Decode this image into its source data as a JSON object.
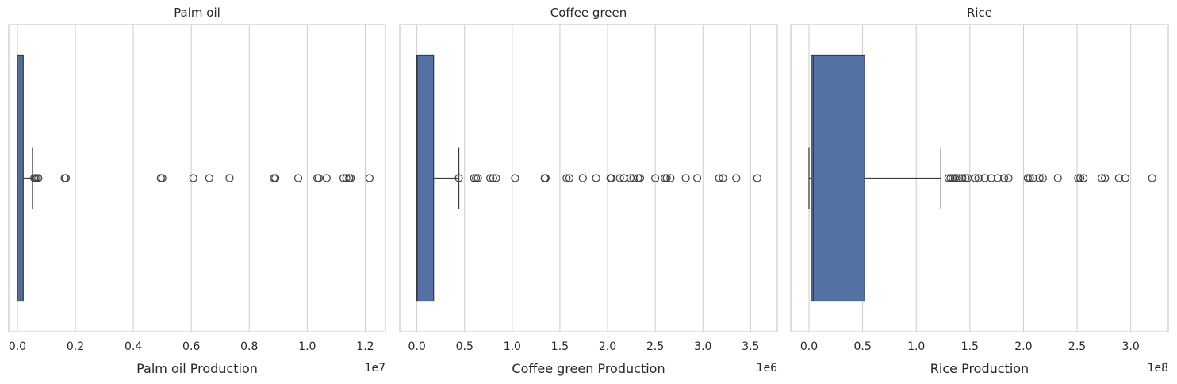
{
  "chart_data": [
    {
      "type": "boxplot",
      "title": "Palm oil",
      "xlabel": "Palm oil  Production",
      "ylabel": "",
      "offset_label": "1e7",
      "xlim": [
        -0.03,
        1.27
      ],
      "xticks": [
        0.0,
        0.2,
        0.4,
        0.6,
        0.8,
        1.0,
        1.2
      ],
      "xtick_labels": [
        "0.0",
        "0.2",
        "0.4",
        "0.6",
        "0.8",
        "1.0",
        "1.2"
      ],
      "grid": true,
      "box": {
        "whisker_low": 0.0,
        "q1": 0.0,
        "median": 0.012,
        "q3": 0.02,
        "whisker_high": 0.052
      },
      "outliers": [
        0.058,
        0.062,
        0.067,
        0.072,
        0.163,
        0.167,
        0.495,
        0.5,
        0.607,
        0.662,
        0.732,
        0.885,
        0.89,
        0.969,
        1.035,
        1.04,
        1.067,
        1.125,
        1.135,
        1.145,
        1.15,
        1.215
      ]
    },
    {
      "type": "boxplot",
      "title": "Coffee green",
      "xlabel": "Coffee green Production",
      "ylabel": "",
      "offset_label": "1e6",
      "xlim": [
        -0.18,
        3.78
      ],
      "xticks": [
        0.0,
        0.5,
        1.0,
        1.5,
        2.0,
        2.5,
        3.0,
        3.5
      ],
      "xtick_labels": [
        "0.0",
        "0.5",
        "1.0",
        "1.5",
        "2.0",
        "2.5",
        "3.0",
        "3.5"
      ],
      "grid": true,
      "box": {
        "whisker_low": 0.0,
        "q1": 0.0,
        "median": 0.005,
        "q3": 0.175,
        "whisker_high": 0.44
      },
      "outliers": [
        0.44,
        0.6,
        0.62,
        0.64,
        0.77,
        0.8,
        0.83,
        1.03,
        1.34,
        1.35,
        1.57,
        1.6,
        1.74,
        1.88,
        2.03,
        2.04,
        2.13,
        2.17,
        2.24,
        2.27,
        2.32,
        2.34,
        2.5,
        2.6,
        2.62,
        2.66,
        2.82,
        2.94,
        3.17,
        3.21,
        3.35,
        3.57
      ]
    },
    {
      "type": "boxplot",
      "title": "Rice",
      "xlabel": "Rice  Production",
      "ylabel": "",
      "offset_label": "1e8",
      "xlim": [
        -0.17,
        3.35
      ],
      "xticks": [
        0.0,
        0.5,
        1.0,
        1.5,
        2.0,
        2.5,
        3.0
      ],
      "xtick_labels": [
        "0.0",
        "0.5",
        "1.0",
        "1.5",
        "2.0",
        "2.5",
        "3.0"
      ],
      "grid": true,
      "box": {
        "whisker_low": 0.0,
        "q1": 0.02,
        "median": 0.04,
        "q3": 0.52,
        "whisker_high": 1.23
      },
      "outliers": [
        1.3,
        1.32,
        1.34,
        1.36,
        1.38,
        1.4,
        1.43,
        1.46,
        1.48,
        1.55,
        1.58,
        1.64,
        1.7,
        1.76,
        1.82,
        1.86,
        2.04,
        2.06,
        2.09,
        2.15,
        2.18,
        2.32,
        2.51,
        2.53,
        2.56,
        2.73,
        2.76,
        2.89,
        2.95,
        3.2
      ]
    }
  ],
  "style": {
    "box_fill": "#5572a5",
    "line_color": "#3d3d3d",
    "grid_color": "#cccccc",
    "axes_edge": "#cccccc"
  }
}
